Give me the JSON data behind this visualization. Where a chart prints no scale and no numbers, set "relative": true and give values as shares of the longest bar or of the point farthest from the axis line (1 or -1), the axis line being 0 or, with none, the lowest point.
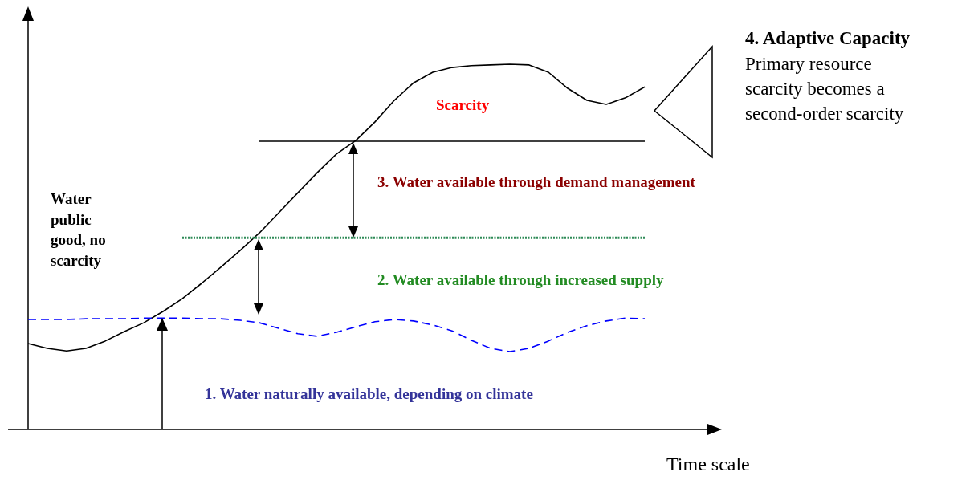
{
  "chart_data": {
    "type": "line",
    "relative": true,
    "xlabel": "Time scale",
    "categories": [
      null,
      null,
      null,
      null,
      null,
      null,
      null,
      null,
      null,
      null,
      null,
      null,
      null,
      null,
      null,
      null,
      null,
      null,
      null,
      null,
      null,
      null,
      null,
      null,
      null,
      null,
      null,
      null,
      null,
      null,
      null,
      null,
      null
    ],
    "series": [
      {
        "color": "#000000",
        "line_style": "solid",
        "values": [
          0.235,
          0.222,
          0.215,
          0.222,
          0.242,
          0.268,
          0.292,
          0.323,
          0.358,
          0.4,
          0.444,
          0.49,
          0.538,
          0.593,
          0.648,
          0.703,
          0.754,
          0.791,
          0.842,
          0.901,
          0.949,
          0.978,
          0.991,
          0.996,
          0.998,
          1.0,
          0.998,
          0.978,
          0.934,
          0.901,
          0.89,
          0.908,
          0.938
        ]
      },
      {
        "color": "#0000ff",
        "line_style": "dashed",
        "values": [
          0.301,
          0.301,
          0.301,
          0.303,
          0.303,
          0.303,
          0.305,
          0.305,
          0.305,
          0.303,
          0.303,
          0.299,
          0.292,
          0.277,
          0.262,
          0.255,
          0.266,
          0.281,
          0.295,
          0.301,
          0.297,
          0.286,
          0.27,
          0.244,
          0.222,
          0.213,
          0.222,
          0.242,
          0.266,
          0.284,
          0.297,
          0.305,
          0.303
        ]
      },
      {
        "color": "#2e8b57",
        "line_style": "dotted",
        "values": [
          null,
          null,
          null,
          null,
          null,
          null,
          null,
          null,
          0.525,
          0.525,
          0.525,
          0.525,
          0.525,
          0.525,
          0.525,
          0.525,
          0.525,
          0.525,
          0.525,
          0.525,
          0.525,
          0.525,
          0.525,
          0.525,
          0.525,
          0.525,
          0.525,
          0.525,
          0.525,
          0.525,
          0.525,
          0.525,
          0.525
        ]
      },
      {
        "color": "#000000",
        "line_style": "solid",
        "values": [
          null,
          null,
          null,
          null,
          null,
          null,
          null,
          null,
          null,
          null,
          null,
          null,
          0.789,
          0.789,
          0.789,
          0.789,
          0.789,
          0.789,
          0.789,
          0.789,
          0.789,
          0.789,
          0.789,
          0.789,
          0.789,
          0.789,
          0.789,
          0.789,
          0.789,
          0.789,
          0.789,
          0.789,
          0.789
        ]
      }
    ],
    "annotations": [
      "Water public good, no scarcity",
      "Scarcity",
      "3. Water available through demand management",
      "2. Water available through increased supply",
      "1. Water naturally available, depending on climate",
      "4. Adaptive Capacity",
      "Primary resource scarcity becomes a second-order scarcity"
    ]
  }
}
